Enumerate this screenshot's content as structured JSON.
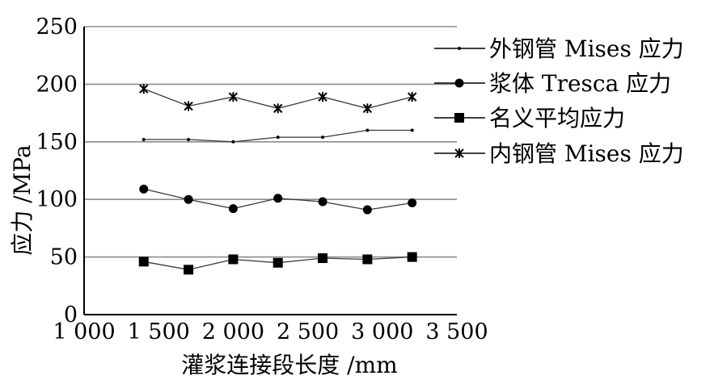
{
  "chart_data": {
    "type": "line",
    "xlabel": "灌浆连接段长度 /mm",
    "ylabel": "应力 /MPa",
    "xlim": [
      1000,
      3500
    ],
    "ylim": [
      0,
      250
    ],
    "xticks": [
      1000,
      1500,
      2000,
      2500,
      3000,
      3500
    ],
    "xtick_labels": [
      "1 000",
      "1 500",
      "2 000",
      "2 500",
      "3 000",
      "3 500"
    ],
    "yticks": [
      0,
      50,
      100,
      150,
      200,
      250
    ],
    "ytick_labels": [
      "0",
      "50",
      "100",
      "150",
      "200",
      "250"
    ],
    "grid": "horizontal",
    "legend_position": "right",
    "series": [
      {
        "name": "外钢管 Mises 应力",
        "marker": "dot",
        "x": [
          1400,
          1700,
          2000,
          2300,
          2600,
          2900,
          3200
        ],
        "y": [
          152,
          152,
          150,
          154,
          154,
          160,
          160
        ]
      },
      {
        "name": "浆体 Tresca 应力",
        "marker": "circle",
        "x": [
          1400,
          1700,
          2000,
          2300,
          2600,
          2900,
          3200
        ],
        "y": [
          109,
          100,
          92,
          101,
          98,
          91,
          97
        ]
      },
      {
        "name": "名义平均应力",
        "marker": "square",
        "x": [
          1400,
          1700,
          2000,
          2300,
          2600,
          2900,
          3200
        ],
        "y": [
          46,
          39,
          48,
          45,
          49,
          48,
          50
        ]
      },
      {
        "name": "内钢管 Mises 应力",
        "marker": "star",
        "x": [
          1400,
          1700,
          2000,
          2300,
          2600,
          2900,
          3200
        ],
        "y": [
          196,
          181,
          189,
          179,
          189,
          179,
          189
        ]
      }
    ]
  }
}
